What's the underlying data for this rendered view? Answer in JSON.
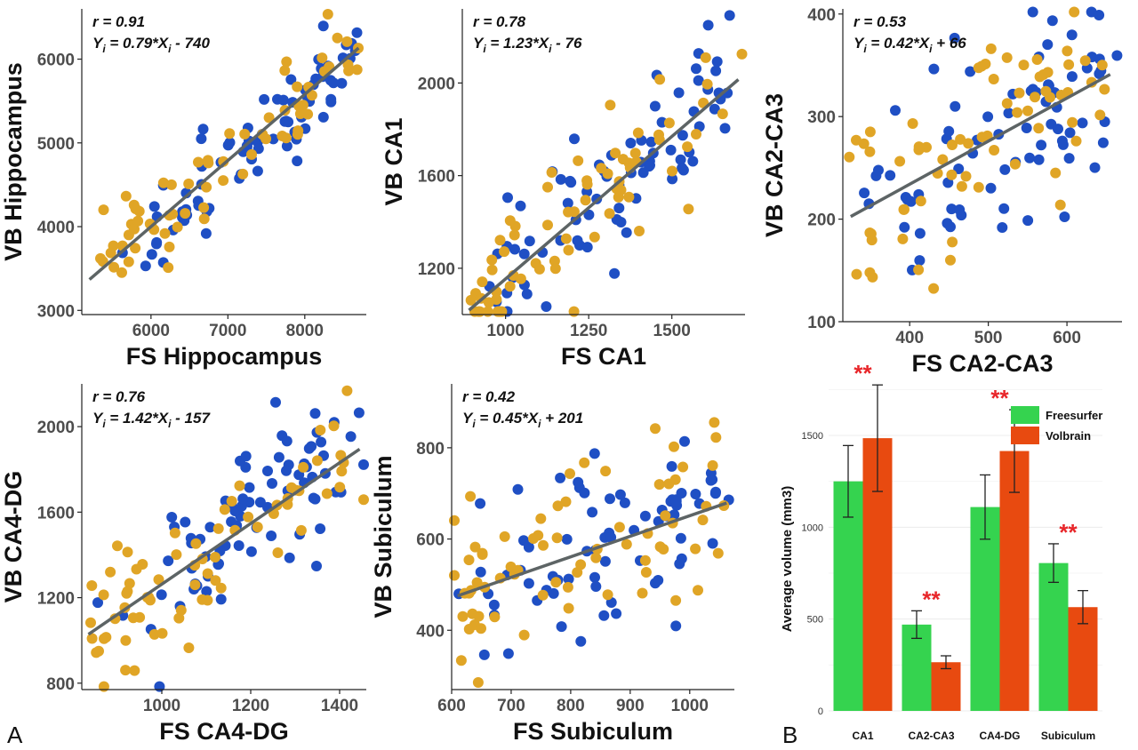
{
  "panel_labels": {
    "a": "A",
    "b": "B"
  },
  "colors": {
    "blue": "#1f4fc4",
    "gold": "#e0a526",
    "fit_line": "#5d6465",
    "freesurfer": "#35d34f",
    "volbrain": "#e84a10",
    "significance": "#e8262a"
  },
  "chart_data": [
    {
      "type": "scatter",
      "xlabel": "FS Hippocampus",
      "ylabel": "VB Hippocampus",
      "stat": {
        "r_text": "r = 0.91",
        "eq_main": "Y",
        "eq_sub": "i",
        "eq_mid": " = 0.79*X",
        "eq_sub2": "i",
        "eq_tail": " - 740"
      },
      "xlim": [
        5100,
        8800
      ],
      "ylim": [
        2950,
        6600
      ],
      "xticks": [
        6000,
        7000,
        8000
      ],
      "yticks": [
        3000,
        4000,
        5000,
        6000
      ],
      "fit": {
        "slope": 0.79,
        "intercept": -740,
        "x_range": [
          5200,
          8700
        ]
      },
      "seed": 11,
      "n_blue": 78,
      "n_gold": 70,
      "noise": 290
    },
    {
      "type": "scatter",
      "xlabel": "FS CA1",
      "ylabel": "VB CA1",
      "stat": {
        "r_text": "r = 0.78",
        "eq_main": "Y",
        "eq_sub": "i",
        "eq_mid": " = 1.23*X",
        "eq_sub2": "i",
        "eq_tail": " - 76"
      },
      "xlim": [
        870,
        1720
      ],
      "ylim": [
        1000,
        2320
      ],
      "xticks": [
        1000,
        1250,
        1500
      ],
      "yticks": [
        1200,
        1600,
        2000
      ],
      "fit": {
        "slope": 1.23,
        "intercept": -76,
        "x_range": [
          890,
          1700
        ]
      },
      "seed": 23,
      "n_blue": 78,
      "n_gold": 72,
      "noise": 140
    },
    {
      "type": "scatter",
      "xlabel": "FS CA2-CA3",
      "ylabel": "VB CA2-CA3",
      "stat": {
        "r_text": "r = 0.53",
        "eq_main": "Y",
        "eq_sub": "i",
        "eq_mid": " = 0.42*X",
        "eq_sub2": "i",
        "eq_tail": " + 66"
      },
      "xlim": [
        315,
        670
      ],
      "ylim": [
        100,
        405
      ],
      "xticks": [
        400,
        500,
        600
      ],
      "yticks": [
        100,
        200,
        300,
        400
      ],
      "fit": {
        "slope": 0.42,
        "intercept": 66,
        "x_range": [
          325,
          655
        ]
      },
      "seed": 37,
      "n_blue": 76,
      "n_gold": 70,
      "noise": 48
    },
    {
      "type": "scatter",
      "xlabel": "FS CA4-DG",
      "ylabel": "VB CA4-DG",
      "stat": {
        "r_text": "r = 0.76",
        "eq_main": "Y",
        "eq_sub": "i",
        "eq_mid": " = 1.42*X",
        "eq_sub2": "i",
        "eq_tail": " - 157"
      },
      "xlim": [
        820,
        1460
      ],
      "ylim": [
        770,
        2200
      ],
      "xticks": [
        1000,
        1200,
        1400
      ],
      "yticks": [
        800,
        1200,
        1600,
        2000
      ],
      "fit": {
        "slope": 1.42,
        "intercept": -157,
        "x_range": [
          835,
          1445
        ]
      },
      "seed": 51,
      "n_blue": 78,
      "n_gold": 72,
      "noise": 165
    },
    {
      "type": "scatter",
      "xlabel": "FS Subiculum",
      "ylabel": "VB Subiculum",
      "stat": {
        "r_text": "r = 0.42",
        "eq_main": "Y",
        "eq_sub": "i",
        "eq_mid": " = 0.45*X",
        "eq_sub2": "i",
        "eq_tail": " + 201"
      },
      "xlim": [
        600,
        1075
      ],
      "ylim": [
        270,
        940
      ],
      "xticks": [
        600,
        700,
        800,
        900,
        1000
      ],
      "yticks": [
        400,
        600,
        800
      ],
      "fit": {
        "slope": 0.45,
        "intercept": 201,
        "x_range": [
          610,
          1062
        ]
      },
      "seed": 67,
      "n_blue": 74,
      "n_gold": 72,
      "noise": 95
    },
    {
      "type": "bar",
      "categories": [
        "CA1",
        "CA2-CA3",
        "CA4-DG",
        "Subiculum"
      ],
      "series": [
        {
          "name": "Freesurfer",
          "values": [
            1250,
            470,
            1110,
            805
          ],
          "err": [
            195,
            75,
            175,
            105
          ]
        },
        {
          "name": "Volbrain",
          "values": [
            1485,
            265,
            1415,
            565
          ],
          "err": [
            290,
            35,
            225,
            90
          ]
        }
      ],
      "significance": [
        "**",
        "**",
        "**",
        "**"
      ],
      "ylabel": "Average volume (mm3)",
      "ylim": [
        0,
        1800
      ],
      "yticks": [
        0,
        500,
        1000,
        1500
      ],
      "grid": true,
      "legend_position": "top-right"
    }
  ]
}
